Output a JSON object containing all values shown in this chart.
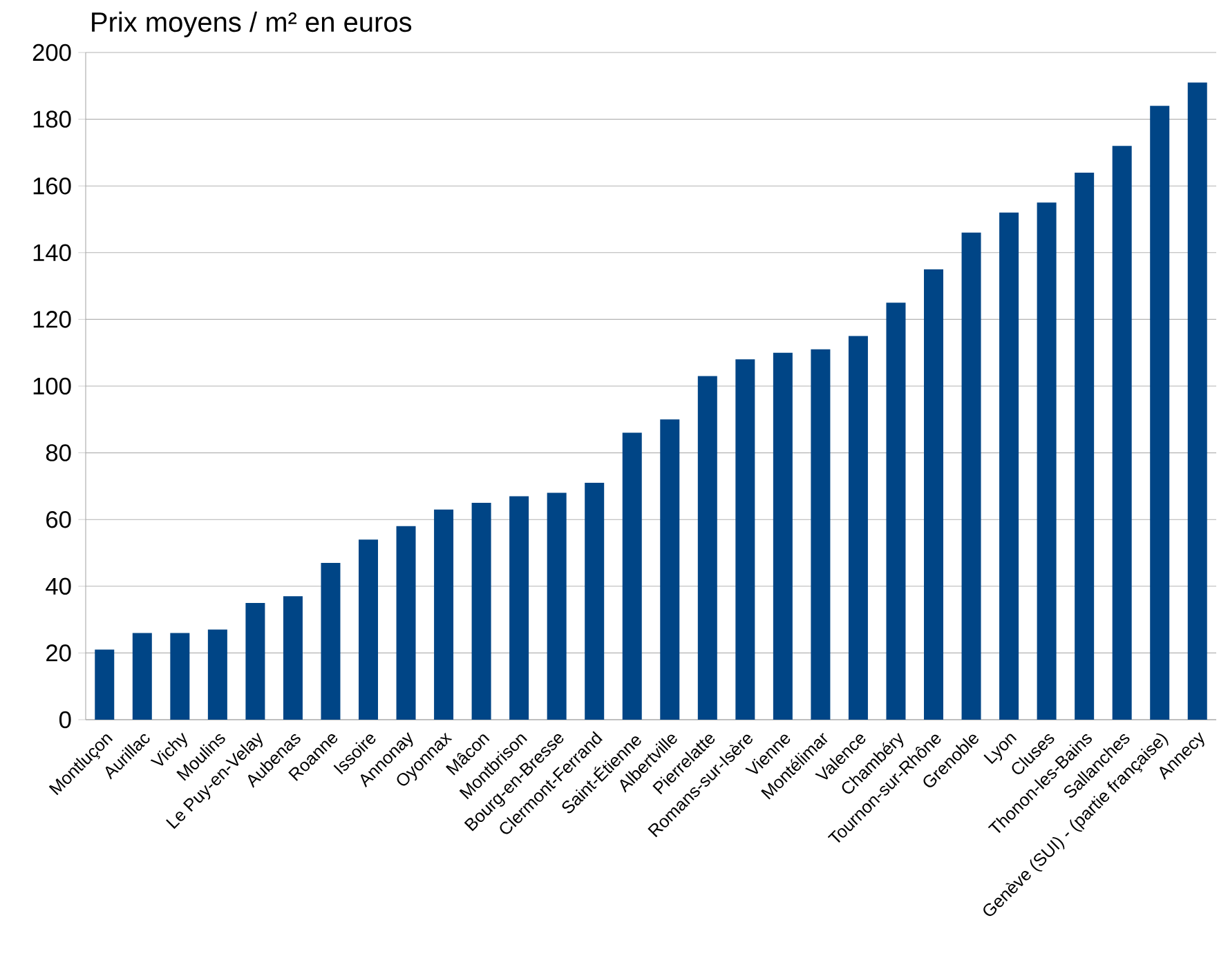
{
  "chart_data": {
    "type": "bar",
    "title": "Prix moyens / m² en euros",
    "categories": [
      "Montluçon",
      "Aurillac",
      "Vichy",
      "Moulins",
      "Le Puy-en-Velay",
      "Aubenas",
      "Roanne",
      "Issoire",
      "Annonay",
      "Oyonnax",
      "Mâcon",
      "Montbrison",
      "Bourg-en-Bresse",
      "Clermont-Ferrand",
      "Saint-Étienne",
      "Albertville",
      "Pierrelatte",
      "Romans-sur-Isère",
      "Vienne",
      "Montélimar",
      "Valence",
      "Chambéry",
      "Tournon-sur-Rhône",
      "Grenoble",
      "Lyon",
      "Cluses",
      "Thonon-les-Bains",
      "Sallanches",
      "Genève (SUI) -  (partie française)",
      "Annecy"
    ],
    "values": [
      21,
      26,
      26,
      27,
      35,
      37,
      47,
      54,
      58,
      63,
      65,
      67,
      68,
      71,
      86,
      90,
      103,
      108,
      110,
      111,
      115,
      125,
      135,
      146,
      152,
      155,
      164,
      172,
      184,
      191
    ],
    "color": "#004586",
    "ylim": [
      0,
      200
    ],
    "yticks": [
      0,
      20,
      40,
      60,
      80,
      100,
      120,
      140,
      160,
      180,
      200
    ],
    "grid": "y"
  }
}
